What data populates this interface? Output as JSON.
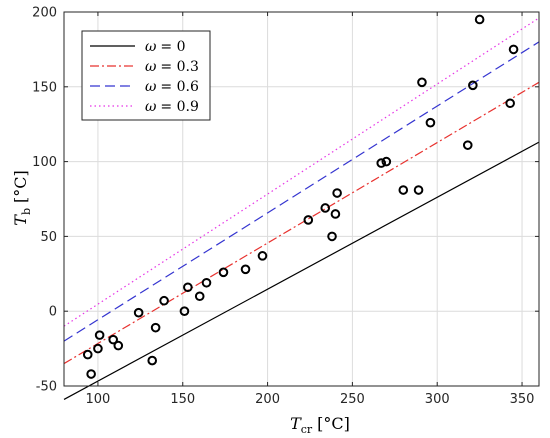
{
  "chart_data": {
    "type": "scatter",
    "xlabel": {
      "main": "T",
      "sub": "cr",
      "unit": "[°C]"
    },
    "ylabel": {
      "main": "T",
      "sub": "b",
      "unit": "[°C]"
    },
    "xlim": [
      80,
      360
    ],
    "ylim": [
      -50,
      200
    ],
    "xticks": [
      100,
      150,
      200,
      250,
      300,
      350
    ],
    "yticks": [
      -50,
      0,
      50,
      100,
      150,
      200
    ],
    "xtick_labels": [
      "100",
      "150",
      "200",
      "250",
      "300",
      "350"
    ],
    "ytick_labels": [
      "-50",
      "0",
      "50",
      "100",
      "150",
      "200"
    ],
    "grid": true,
    "legend_position": "top-left",
    "series": [
      {
        "name": "ω = 0",
        "symbol": "ω",
        "value": "= 0",
        "type": "line",
        "style": "solid",
        "color": "#000000",
        "x": [
          80,
          360
        ],
        "y": [
          -59,
          113
        ]
      },
      {
        "name": "ω = 0.3",
        "symbol": "ω",
        "value": "= 0.3",
        "type": "line",
        "style": "dashdot",
        "color": "#e8322f",
        "x": [
          80,
          360
        ],
        "y": [
          -35,
          153
        ]
      },
      {
        "name": "ω = 0.6",
        "symbol": "ω",
        "value": "= 0.6",
        "type": "line",
        "style": "dashed",
        "color": "#3535d0",
        "x": [
          80,
          360
        ],
        "y": [
          -20,
          180
        ]
      },
      {
        "name": "ω = 0.9",
        "symbol": "ω",
        "value": "= 0.9",
        "type": "line",
        "style": "dotted",
        "color": "#e633e6",
        "x": [
          80,
          360
        ],
        "y": [
          -10,
          196
        ]
      }
    ],
    "points": {
      "marker": "circle-open",
      "color": "#000000",
      "x": [
        94,
        96,
        100,
        101,
        109,
        112,
        124,
        132,
        134,
        139,
        151,
        153,
        160,
        164,
        174,
        187,
        197,
        224,
        234,
        238,
        240,
        241,
        267,
        270,
        280,
        289,
        291,
        296,
        318,
        321,
        325,
        343,
        345
      ],
      "y": [
        -29,
        -42,
        -25,
        -16,
        -19,
        -23,
        -1,
        -33,
        -11,
        7,
        0,
        16,
        10,
        19,
        26,
        28,
        37,
        61,
        69,
        50,
        65,
        79,
        99,
        100,
        81,
        81,
        153,
        126,
        111,
        151,
        195,
        139,
        175
      ]
    }
  }
}
